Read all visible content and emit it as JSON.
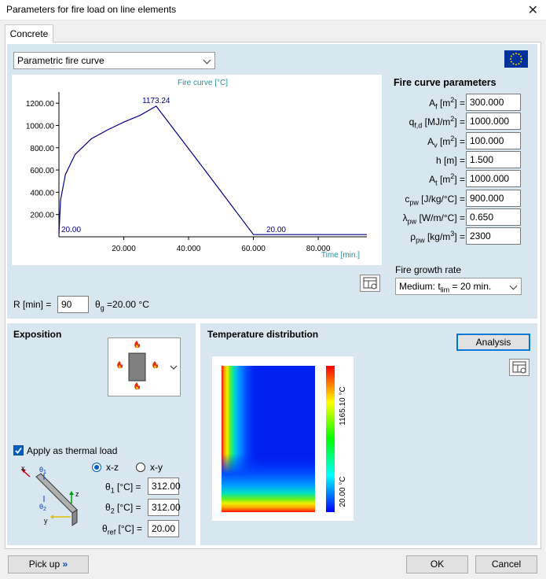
{
  "window": {
    "title": "Parameters for fire load on line elements"
  },
  "tabs": [
    {
      "label": "Concrete"
    }
  ],
  "curve_select": {
    "value": "Parametric fire curve"
  },
  "flag": {
    "icon": "eu-flag-icon"
  },
  "chart_data": {
    "type": "line",
    "title": "Fire curve [°C]",
    "xlabel": "Time [min.]",
    "ylabel": "",
    "xlim": [
      0,
      95
    ],
    "ylim": [
      0,
      1300
    ],
    "x_ticks": [
      "20.000",
      "40.000",
      "60.000",
      "80.000"
    ],
    "y_ticks": [
      "1200.00",
      "1000.00",
      "800.00",
      "600.00",
      "400.00",
      "200.00"
    ],
    "series": [
      {
        "color": "#00008b",
        "x": [
          0,
          0.5,
          2,
          5,
          10,
          15,
          20,
          25,
          30,
          45,
          60,
          95
        ],
        "y": [
          20,
          330,
          560,
          740,
          880,
          960,
          1030,
          1090,
          1173.24,
          600,
          20,
          20
        ]
      }
    ],
    "annotations": [
      {
        "text": "1173.24",
        "x": 30,
        "y": 1173.24
      },
      {
        "text": "20.00",
        "x": 0,
        "y": 20
      },
      {
        "text": "20.00",
        "x": 67,
        "y": 20
      }
    ]
  },
  "r_min": {
    "label": "R [min] =",
    "value": "90"
  },
  "theta_g": {
    "symbol": "θ",
    "sub": "g",
    "text": "=20.00 °C"
  },
  "params": {
    "title": "Fire curve parameters",
    "rows": [
      {
        "sym": "A",
        "sub": "f",
        "unit": " [m",
        "sup": "2",
        "tail": "] =",
        "value": "300.000"
      },
      {
        "sym": "q",
        "sub": "f,d",
        "unit": " [MJ/m",
        "sup": "2",
        "tail": "] =",
        "value": "1000.000"
      },
      {
        "sym": "A",
        "sub": "v",
        "unit": " [m",
        "sup": "2",
        "tail": "] =",
        "value": "100.000"
      },
      {
        "sym": "h",
        "sub": "",
        "unit": " [m",
        "sup": "",
        "tail": "] =",
        "value": "1.500"
      },
      {
        "sym": "A",
        "sub": "t",
        "unit": " [m",
        "sup": "2",
        "tail": "] =",
        "value": "1000.000"
      },
      {
        "sym": "c",
        "sub": "pw",
        "unit": " [J/kg/°C",
        "sup": "",
        "tail": "] =",
        "value": "900.000"
      },
      {
        "sym": "λ",
        "sub": "pw",
        "unit": " [W/m/°C",
        "sup": "",
        "tail": "] =",
        "value": "0.650"
      },
      {
        "sym": "ρ",
        "sub": "pw",
        "unit": " [kg/m",
        "sup": "3",
        "tail": "] =",
        "value": "2300"
      }
    ]
  },
  "growth": {
    "label": "Fire growth rate",
    "value_main": "Medium: t",
    "value_sub": "lim",
    "value_tail": " = 20 min."
  },
  "exposition": {
    "title": "Exposition",
    "apply_label": "Apply as thermal load",
    "apply_checked": true
  },
  "thermal": {
    "xz_label": "x-z",
    "xy_label": "x-y",
    "theta1": {
      "sym": "θ",
      "sub": "1",
      "unit": " [°C] =",
      "value": "312.00"
    },
    "theta2": {
      "sym": "θ",
      "sub": "2",
      "unit": " [°C] =",
      "value": "312.00"
    },
    "thetaref": {
      "sym": "θ",
      "sub": "ref",
      "unit": " [°C] =",
      "value": "20.00"
    },
    "axes": {
      "x": "x",
      "y": "y",
      "z": "z",
      "t1": "θ",
      "t1sub": "1",
      "t2": "θ",
      "t2sub": "2"
    }
  },
  "temp": {
    "title": "Temperature distribution",
    "analysis_label": "Analysis",
    "max_label": "1165.10 °C",
    "min_label": "20.00 °C"
  },
  "footer": {
    "pickup_label": "Pick up",
    "pickup_icon": "double-chevron-right-icon",
    "ok_label": "OK",
    "cancel_label": "Cancel"
  }
}
